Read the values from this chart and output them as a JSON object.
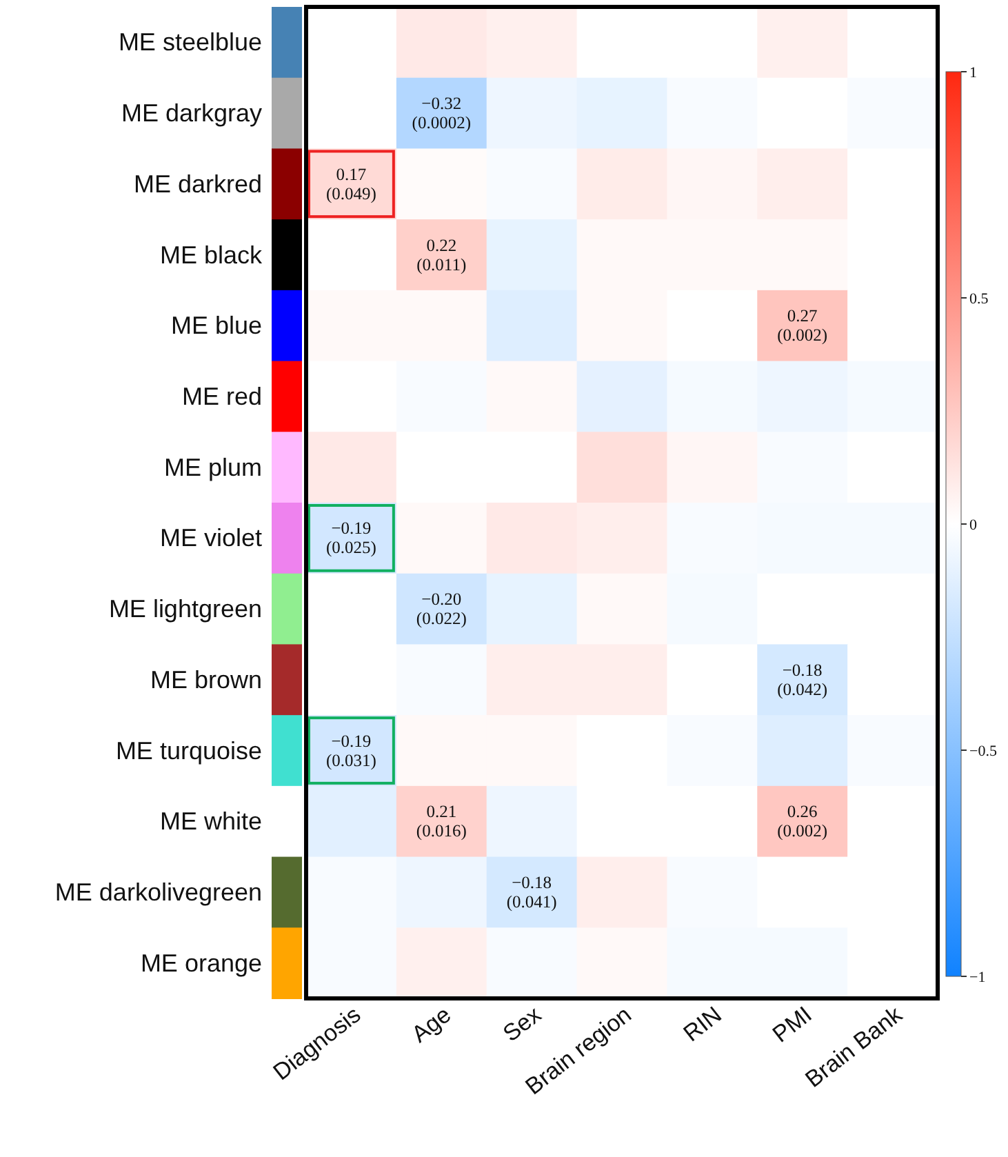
{
  "chart_data": {
    "type": "heatmap",
    "categories": [
      "Diagnosis",
      "Age",
      "Sex",
      "Brain region",
      "RIN",
      "PMI",
      "Brain Bank"
    ],
    "y_categories": [
      "ME steelblue",
      "ME darkgray",
      "ME darkred",
      "ME black",
      "ME blue",
      "ME red",
      "ME plum",
      "ME violet",
      "ME lightgreen",
      "ME brown",
      "ME turquoise",
      "ME white",
      "ME darkolivegreen",
      "ME orange"
    ],
    "cells": [
      [
        0,
        0.1,
        0.07,
        0,
        0,
        0.07,
        0
      ],
      [
        0,
        -0.32,
        -0.07,
        -0.1,
        -0.03,
        0,
        -0.03
      ],
      [
        0.17,
        0.02,
        -0.03,
        0.09,
        0.04,
        0.08,
        0
      ],
      [
        0,
        0.22,
        -0.1,
        0.03,
        0.03,
        0.03,
        0
      ],
      [
        0.03,
        0.03,
        -0.14,
        0.03,
        0,
        0.27,
        0
      ],
      [
        0,
        -0.03,
        0.03,
        -0.11,
        -0.04,
        -0.07,
        -0.04
      ],
      [
        0.1,
        0,
        0,
        0.15,
        0.04,
        -0.03,
        0
      ],
      [
        -0.19,
        0.03,
        0.1,
        0.08,
        -0.03,
        -0.04,
        -0.04
      ],
      [
        0,
        -0.2,
        -0.1,
        0.03,
        -0.04,
        0,
        0
      ],
      [
        0,
        -0.03,
        0.08,
        0.08,
        0,
        -0.18,
        0
      ],
      [
        -0.19,
        0.03,
        0.03,
        0,
        -0.03,
        -0.14,
        -0.03
      ],
      [
        -0.12,
        0.21,
        -0.07,
        0,
        0,
        0.26,
        0
      ],
      [
        -0.03,
        -0.07,
        -0.18,
        0.08,
        -0.03,
        0,
        0
      ],
      [
        -0.03,
        0.07,
        -0.03,
        0.03,
        -0.04,
        -0.04,
        0
      ]
    ],
    "cell_labels": [
      [
        null,
        null,
        null,
        null,
        null,
        null,
        null
      ],
      [
        null,
        "−0.32\n(0.0002)",
        null,
        null,
        null,
        null,
        null
      ],
      [
        "0.17\n(0.049)",
        null,
        null,
        null,
        null,
        null,
        null
      ],
      [
        null,
        "0.22\n(0.011)",
        null,
        null,
        null,
        null,
        null
      ],
      [
        null,
        null,
        null,
        null,
        null,
        "0.27\n(0.002)",
        null
      ],
      [
        null,
        null,
        null,
        null,
        null,
        null,
        null
      ],
      [
        null,
        null,
        null,
        null,
        null,
        null,
        null
      ],
      [
        "−0.19\n(0.025)",
        null,
        null,
        null,
        null,
        null,
        null
      ],
      [
        null,
        "−0.20\n(0.022)",
        null,
        null,
        null,
        null,
        null
      ],
      [
        null,
        null,
        null,
        null,
        null,
        "−0.18\n(0.042)",
        null
      ],
      [
        "−0.19\n(0.031)",
        null,
        null,
        null,
        null,
        null,
        null
      ],
      [
        null,
        "0.21\n(0.016)",
        null,
        null,
        null,
        "0.26\n(0.002)",
        null
      ],
      [
        null,
        null,
        "−0.18\n(0.041)",
        null,
        null,
        null,
        null
      ],
      [
        null,
        null,
        null,
        null,
        null,
        null,
        null
      ]
    ],
    "clim": [
      -1,
      1
    ],
    "cticks": [
      {
        "value": 1,
        "label": "1"
      },
      {
        "value": 0.5,
        "label": "0.5"
      },
      {
        "value": 0,
        "label": "0"
      },
      {
        "value": -0.5,
        "label": "−0.5"
      },
      {
        "value": -1,
        "label": "−1"
      }
    ]
  }
}
